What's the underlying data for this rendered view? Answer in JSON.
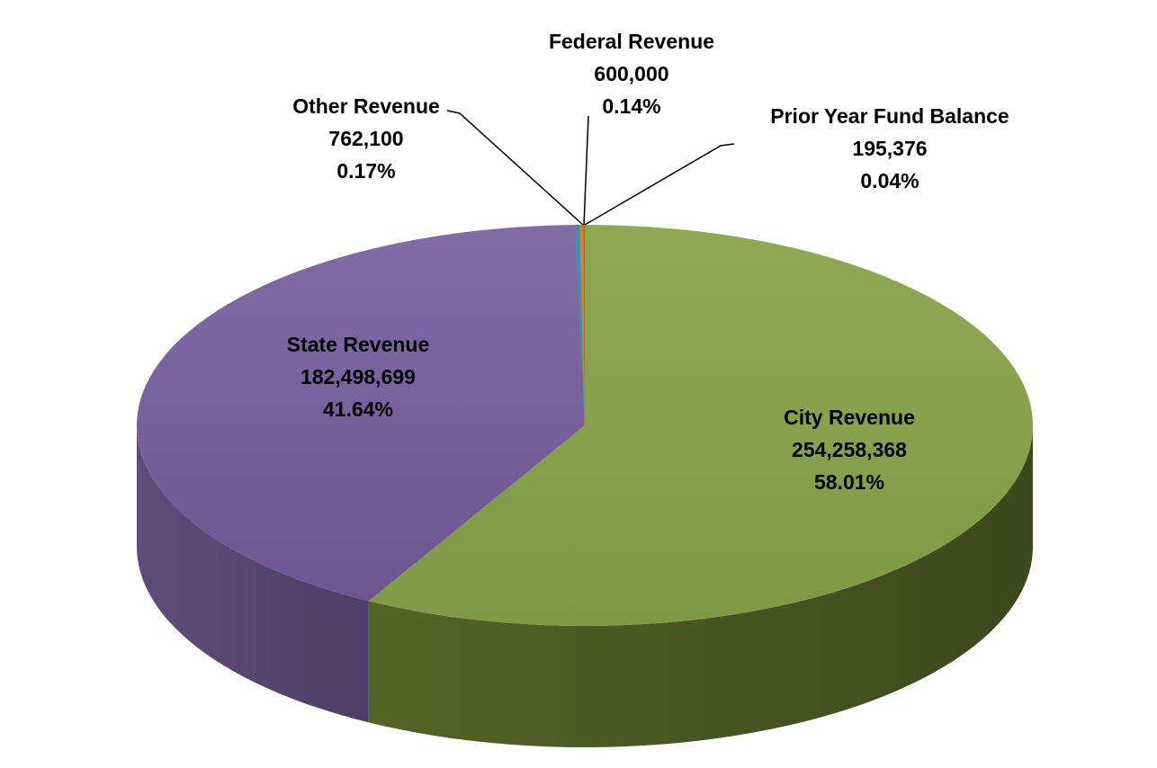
{
  "chart_data": {
    "type": "pie",
    "style": "3d",
    "title": "",
    "direction": "clockwise",
    "start_angle_deg": 0,
    "legend_position": "none",
    "data_labels": [
      "category",
      "value",
      "percentage"
    ],
    "background": "#ffffff",
    "leader_line_color": "#000000",
    "slices": [
      {
        "label": "City Revenue",
        "value": 254258368,
        "value_text": "254,258,368",
        "pct": 58.01,
        "pct_text": "58.01%",
        "color_top": "#8FA854",
        "color_top2": "#7E9A45",
        "color_side": "#566326",
        "color_side2": "#3D481C"
      },
      {
        "label": "State Revenue",
        "value": 182498699,
        "value_text": "182,498,699",
        "pct": 41.64,
        "pct_text": "41.64%",
        "color_top": "#826BA6",
        "color_top2": "#6D5690",
        "color_side": "#5F4C7C",
        "color_side2": "#4E3D66"
      },
      {
        "label": "Other Revenue",
        "value": 762100,
        "value_text": "762,100",
        "pct": 0.17,
        "pct_text": "0.17%",
        "color_top": "#3E8FB0",
        "color_top2": "#3E8FB0",
        "color_side": "#2E6B84",
        "color_side2": "#2E6B84"
      },
      {
        "label": "Federal Revenue",
        "value": 600000,
        "value_text": "600,000",
        "pct": 0.14,
        "pct_text": "0.14%",
        "color_top": "#D07F35",
        "color_top2": "#D07F35",
        "color_side": "#9C5F28",
        "color_side2": "#9C5F28"
      },
      {
        "label": "Prior Year Fund Balance",
        "value": 195376,
        "value_text": "195,376",
        "pct": 0.04,
        "pct_text": "0.04%",
        "color_top": "#C0504D",
        "color_top2": "#C0504D",
        "color_side": "#903C3A",
        "color_side2": "#903C3A"
      }
    ]
  }
}
